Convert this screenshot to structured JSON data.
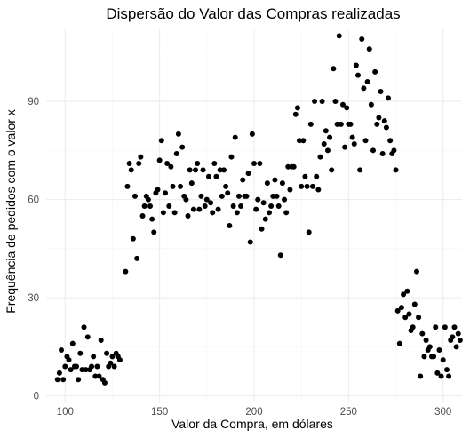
{
  "chart_data": {
    "type": "scatter",
    "title": "Dispersão do Valor das Compras realizadas",
    "xlabel": "Valor da Compra, em dólares",
    "ylabel": "Frequência de pedidos com o valor x",
    "xlim": [
      90,
      310
    ],
    "ylim": [
      -2,
      112
    ],
    "x_ticks": [
      100,
      150,
      200,
      250,
      300
    ],
    "y_ticks": [
      0,
      30,
      60,
      90
    ],
    "grid": true,
    "point_color": "#000000",
    "points": [
      [
        96,
        5
      ],
      [
        97,
        7
      ],
      [
        98,
        14
      ],
      [
        99,
        5
      ],
      [
        100,
        9
      ],
      [
        101,
        12
      ],
      [
        102,
        11
      ],
      [
        103,
        8
      ],
      [
        104,
        16
      ],
      [
        105,
        9
      ],
      [
        106,
        9
      ],
      [
        107,
        5
      ],
      [
        108,
        13
      ],
      [
        109,
        8
      ],
      [
        110,
        21
      ],
      [
        111,
        8
      ],
      [
        112,
        18
      ],
      [
        113,
        8
      ],
      [
        114,
        9
      ],
      [
        115,
        12
      ],
      [
        116,
        6
      ],
      [
        117,
        9
      ],
      [
        118,
        6
      ],
      [
        119,
        17
      ],
      [
        120,
        5
      ],
      [
        121,
        4
      ],
      [
        122,
        13
      ],
      [
        123,
        9
      ],
      [
        124,
        10
      ],
      [
        125,
        12
      ],
      [
        126,
        9
      ],
      [
        127,
        13
      ],
      [
        128,
        12
      ],
      [
        129,
        11
      ],
      [
        132,
        38
      ],
      [
        133,
        64
      ],
      [
        134,
        71
      ],
      [
        135,
        69
      ],
      [
        136,
        48
      ],
      [
        137,
        61
      ],
      [
        138,
        42
      ],
      [
        139,
        71
      ],
      [
        140,
        73
      ],
      [
        141,
        55
      ],
      [
        142,
        58
      ],
      [
        143,
        61
      ],
      [
        144,
        60
      ],
      [
        145,
        58
      ],
      [
        146,
        54
      ],
      [
        147,
        50
      ],
      [
        148,
        62
      ],
      [
        149,
        63
      ],
      [
        150,
        72
      ],
      [
        151,
        78
      ],
      [
        152,
        56
      ],
      [
        153,
        62
      ],
      [
        154,
        71
      ],
      [
        155,
        58
      ],
      [
        156,
        70
      ],
      [
        157,
        64
      ],
      [
        158,
        56
      ],
      [
        159,
        74
      ],
      [
        160,
        80
      ],
      [
        161,
        64
      ],
      [
        162,
        76
      ],
      [
        163,
        61
      ],
      [
        164,
        60
      ],
      [
        165,
        55
      ],
      [
        166,
        69
      ],
      [
        167,
        65
      ],
      [
        168,
        57
      ],
      [
        169,
        69
      ],
      [
        170,
        71
      ],
      [
        171,
        57
      ],
      [
        172,
        61
      ],
      [
        173,
        69
      ],
      [
        174,
        58
      ],
      [
        175,
        60
      ],
      [
        176,
        67
      ],
      [
        177,
        59
      ],
      [
        178,
        56
      ],
      [
        179,
        71
      ],
      [
        180,
        67
      ],
      [
        181,
        57
      ],
      [
        182,
        69
      ],
      [
        183,
        61
      ],
      [
        184,
        69
      ],
      [
        185,
        64
      ],
      [
        186,
        62
      ],
      [
        187,
        52
      ],
      [
        188,
        73
      ],
      [
        189,
        58
      ],
      [
        190,
        79
      ],
      [
        191,
        56
      ],
      [
        192,
        61
      ],
      [
        193,
        58
      ],
      [
        194,
        66
      ],
      [
        195,
        61
      ],
      [
        196,
        61
      ],
      [
        197,
        68
      ],
      [
        198,
        47
      ],
      [
        199,
        80
      ],
      [
        200,
        71
      ],
      [
        201,
        57
      ],
      [
        202,
        60
      ],
      [
        203,
        71
      ],
      [
        204,
        51
      ],
      [
        205,
        59
      ],
      [
        206,
        54
      ],
      [
        207,
        65
      ],
      [
        208,
        56
      ],
      [
        209,
        58
      ],
      [
        210,
        61
      ],
      [
        211,
        66
      ],
      [
        212,
        61
      ],
      [
        213,
        58
      ],
      [
        214,
        43
      ],
      [
        215,
        65
      ],
      [
        216,
        60
      ],
      [
        217,
        56
      ],
      [
        218,
        70
      ],
      [
        219,
        63
      ],
      [
        220,
        70
      ],
      [
        221,
        70
      ],
      [
        222,
        86
      ],
      [
        223,
        88
      ],
      [
        224,
        78
      ],
      [
        225,
        64
      ],
      [
        226,
        78
      ],
      [
        227,
        67
      ],
      [
        228,
        64
      ],
      [
        229,
        50
      ],
      [
        230,
        83
      ],
      [
        231,
        64
      ],
      [
        232,
        90
      ],
      [
        233,
        67
      ],
      [
        234,
        63
      ],
      [
        235,
        73
      ],
      [
        236,
        90
      ],
      [
        237,
        77
      ],
      [
        238,
        81
      ],
      [
        239,
        75
      ],
      [
        240,
        79
      ],
      [
        241,
        69
      ],
      [
        242,
        100
      ],
      [
        243,
        90
      ],
      [
        244,
        83
      ],
      [
        245,
        110
      ],
      [
        246,
        83
      ],
      [
        247,
        89
      ],
      [
        248,
        76
      ],
      [
        249,
        88
      ],
      [
        250,
        83
      ],
      [
        251,
        83
      ],
      [
        252,
        79
      ],
      [
        253,
        77
      ],
      [
        254,
        101
      ],
      [
        255,
        98
      ],
      [
        256,
        69
      ],
      [
        257,
        109
      ],
      [
        258,
        94
      ],
      [
        259,
        78
      ],
      [
        260,
        96
      ],
      [
        261,
        106
      ],
      [
        262,
        89
      ],
      [
        263,
        75
      ],
      [
        264,
        99
      ],
      [
        265,
        83
      ],
      [
        266,
        85
      ],
      [
        267,
        93
      ],
      [
        268,
        74
      ],
      [
        269,
        84
      ],
      [
        270,
        82
      ],
      [
        271,
        91
      ],
      [
        272,
        78
      ],
      [
        273,
        74
      ],
      [
        274,
        75
      ],
      [
        275,
        69
      ],
      [
        276,
        26
      ],
      [
        277,
        16
      ],
      [
        278,
        27
      ],
      [
        279,
        31
      ],
      [
        280,
        24
      ],
      [
        281,
        32
      ],
      [
        282,
        25
      ],
      [
        283,
        20
      ],
      [
        284,
        21
      ],
      [
        285,
        28
      ],
      [
        286,
        38
      ],
      [
        287,
        24
      ],
      [
        288,
        6
      ],
      [
        289,
        19
      ],
      [
        290,
        12
      ],
      [
        291,
        17
      ],
      [
        292,
        14
      ],
      [
        293,
        15
      ],
      [
        294,
        12
      ],
      [
        295,
        12
      ],
      [
        296,
        21
      ],
      [
        297,
        7
      ],
      [
        298,
        14
      ],
      [
        299,
        6
      ],
      [
        300,
        11
      ],
      [
        301,
        21
      ],
      [
        302,
        8
      ],
      [
        303,
        6
      ],
      [
        304,
        17
      ],
      [
        305,
        18
      ],
      [
        306,
        21
      ],
      [
        307,
        15
      ],
      [
        308,
        19
      ],
      [
        309,
        17
      ]
    ]
  }
}
